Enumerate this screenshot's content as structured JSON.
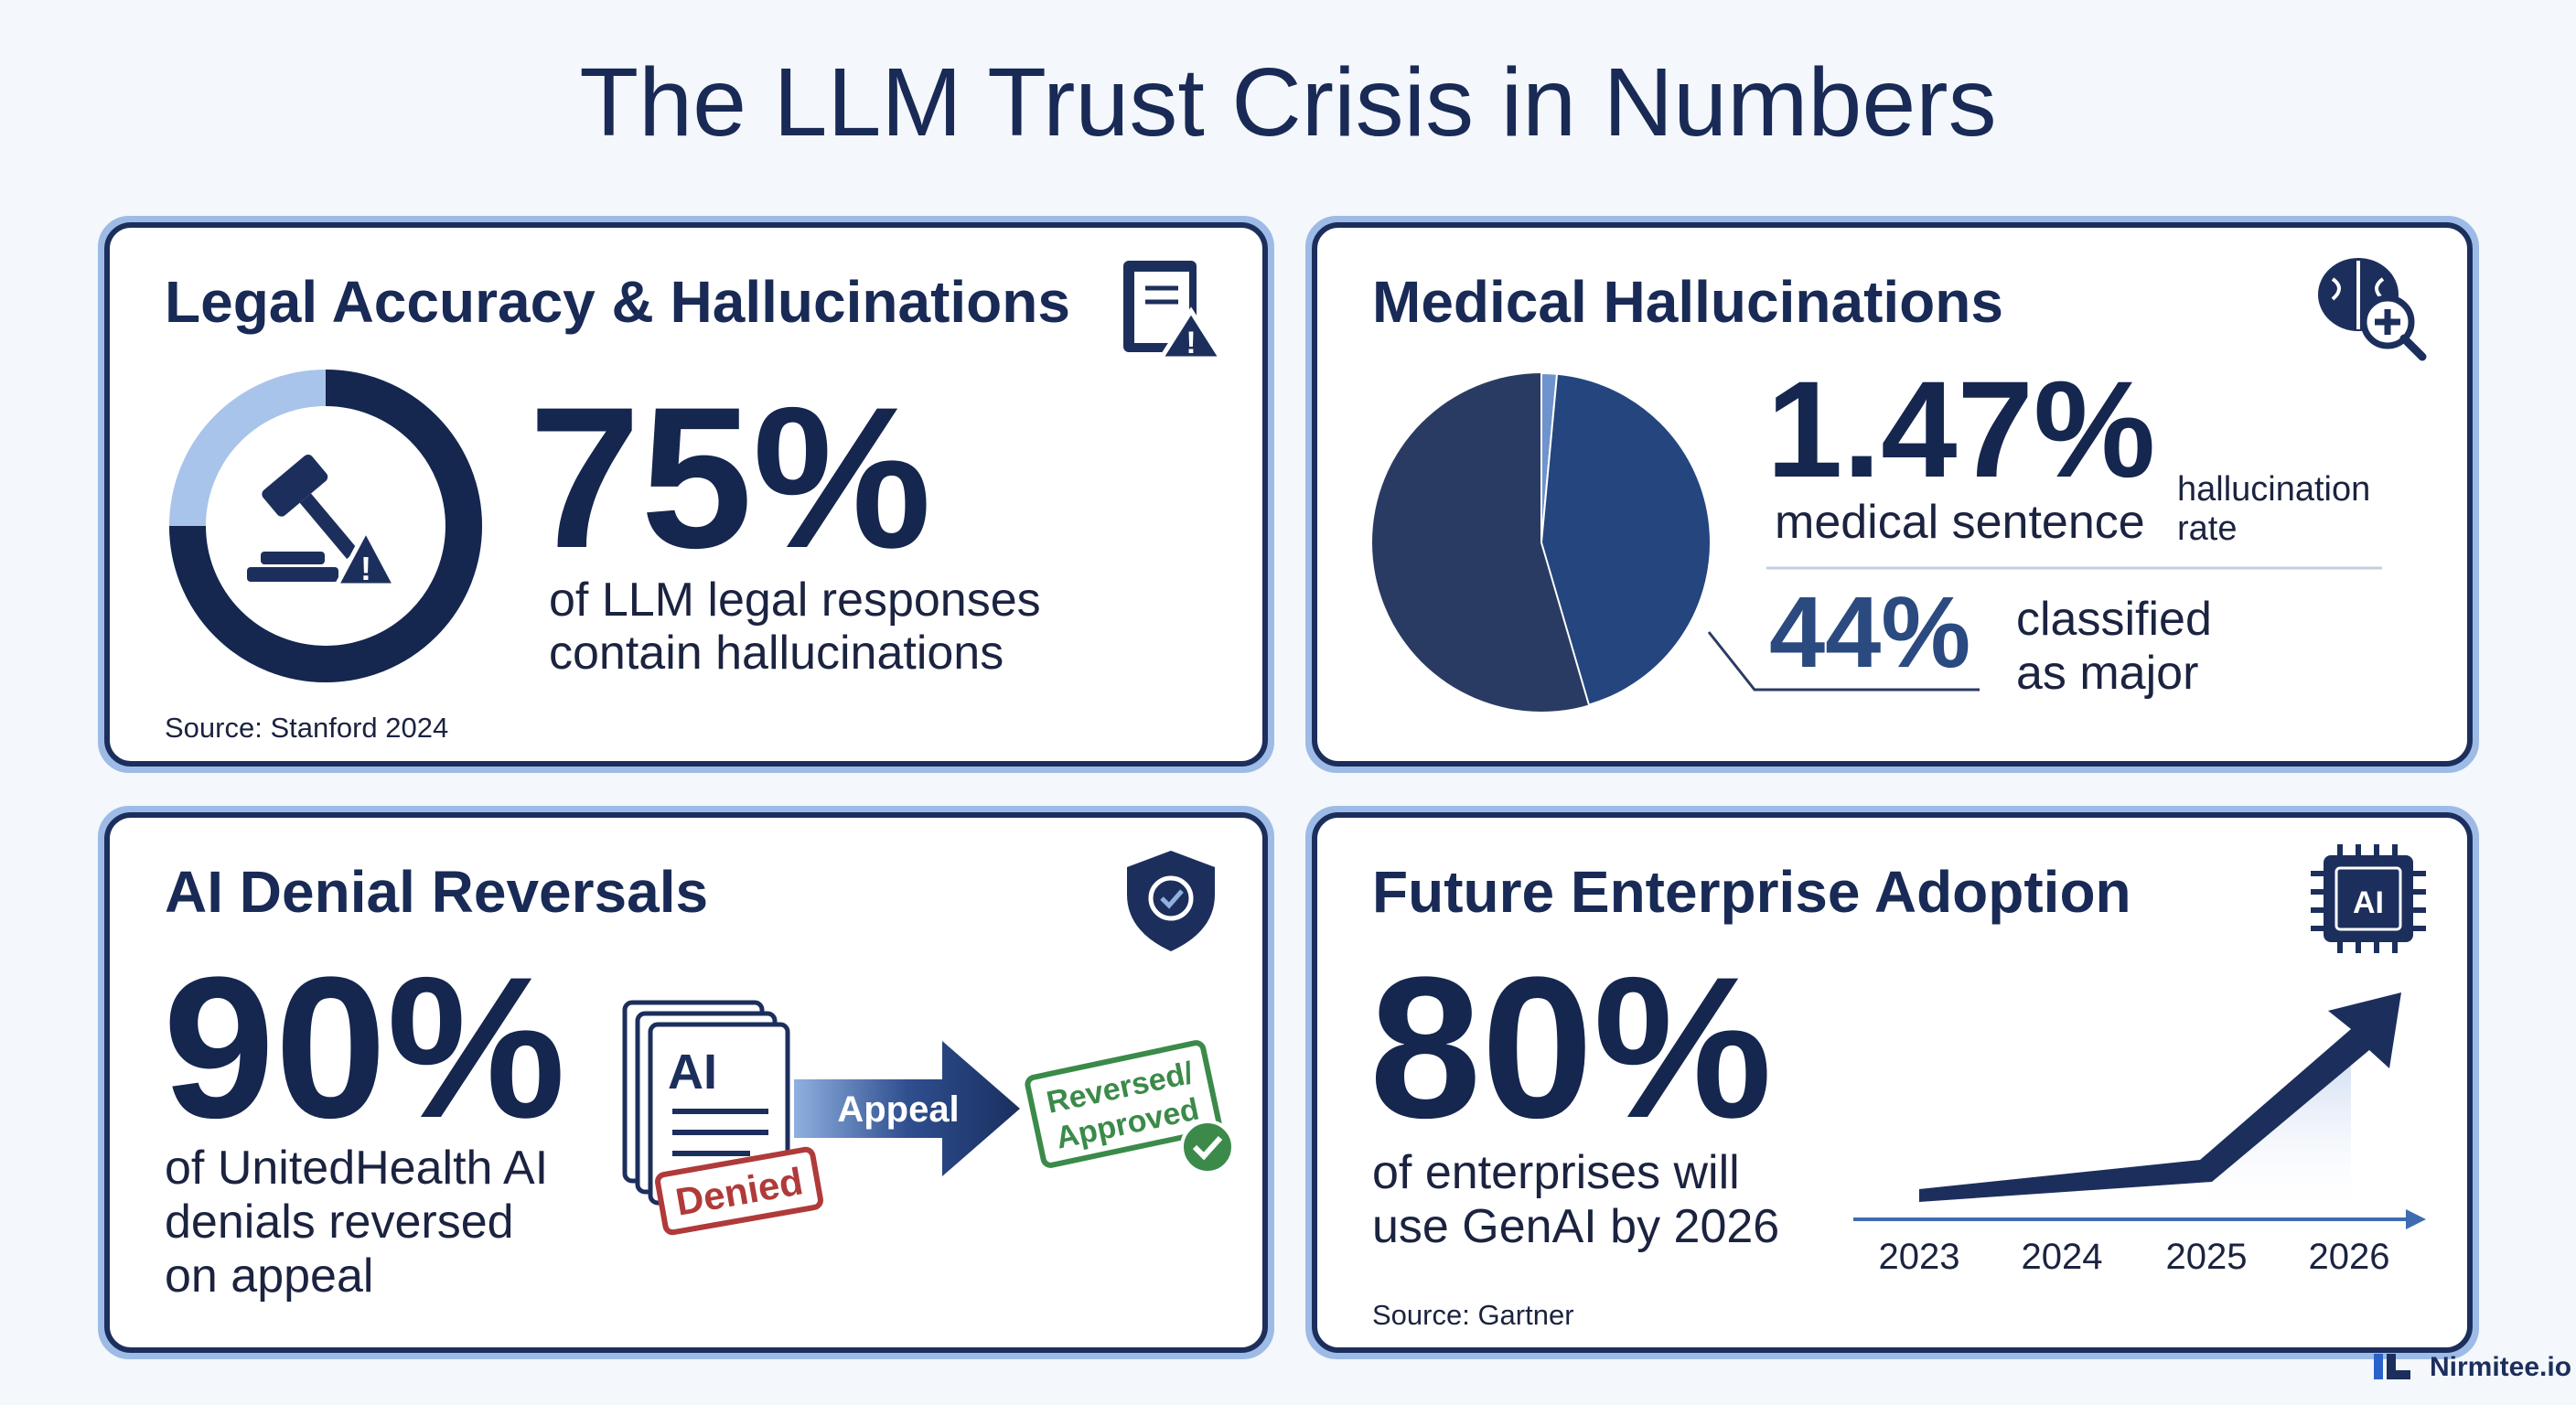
{
  "title": "The LLM Trust Crisis in Numbers",
  "cards": [
    {
      "heading": "Legal Accuracy & Hallucinations",
      "stat": {
        "value": 75,
        "label": "75%"
      },
      "description": [
        "of LLM legal responses",
        "contain hallucinations"
      ],
      "source": "Source: Stanford 2024"
    },
    {
      "heading": "Medical Hallucinations",
      "stat": {
        "value": 1.47,
        "label": "1.47%"
      },
      "stat_caption": "medical sentence",
      "stat_note": [
        "hallucination",
        "rate"
      ],
      "secondary_stat": {
        "value": 44,
        "label": "44%"
      },
      "secondary_caption": [
        "classified",
        "as major"
      ]
    },
    {
      "heading": "AI Denial Reversals",
      "stat": "90%",
      "description": [
        "of UnitedHealth AI",
        "denials reversed",
        "on appeal"
      ],
      "document_label": "AI",
      "stamp_denied": "Denied",
      "arrow_label": "Appeal",
      "stamp_approved": [
        "Reversed/",
        "Approved"
      ]
    },
    {
      "heading": "Future Enterprise Adoption",
      "stat": "80%",
      "description": [
        "of enterprises will",
        "use GenAI by 2026"
      ],
      "chip_label": "AI",
      "years": [
        "2023",
        "2024",
        "2025",
        "2026"
      ],
      "source": "Source: Gartner"
    }
  ],
  "brand": "Nirmitee.io"
}
